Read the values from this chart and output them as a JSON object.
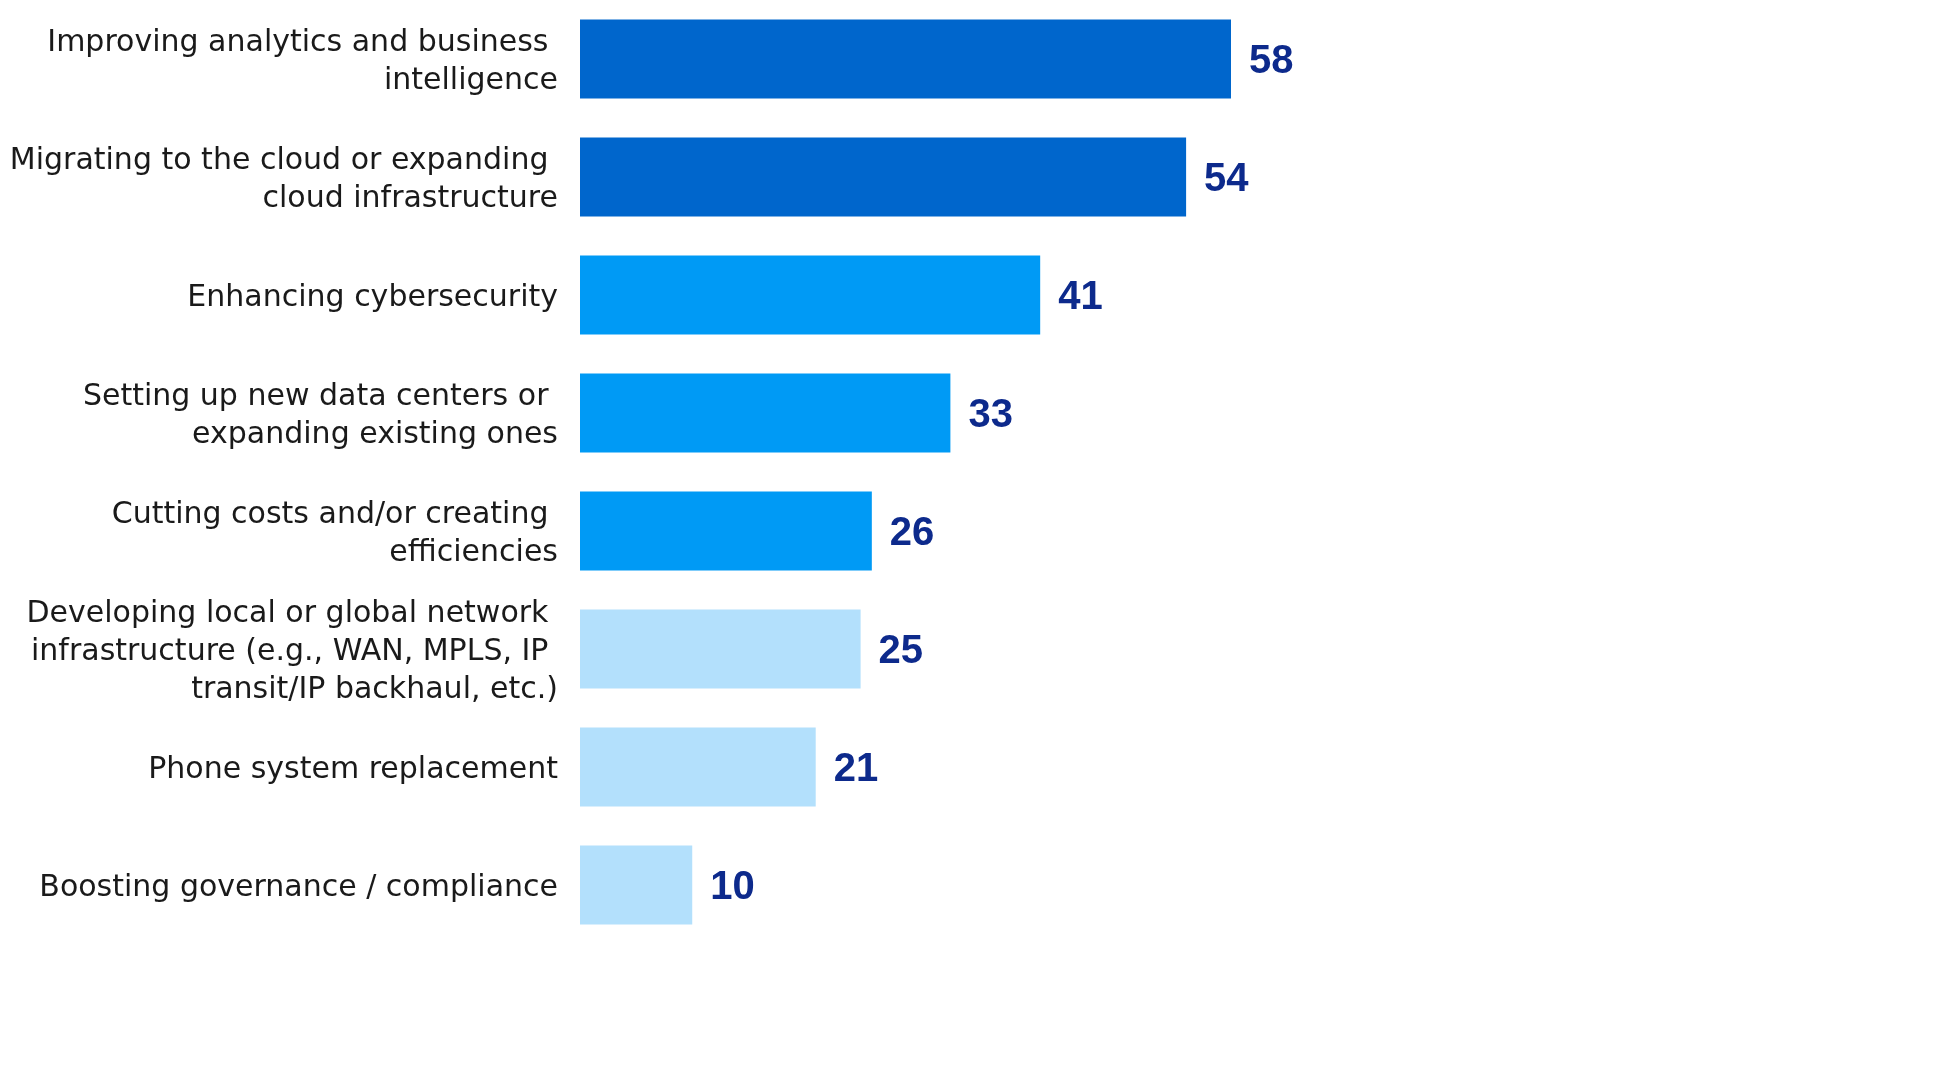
{
  "chart_data": {
    "type": "bar",
    "orientation": "horizontal",
    "categories": [
      "Improving analytics and business intelligence",
      "Migrating to the cloud or expanding cloud infrastructure",
      "Enhancing cybersecurity",
      "Setting up new data centers or expanding existing ones",
      "Cutting costs and/or creating efficiencies",
      "Developing local or global network infrastructure (e.g., WAN, MPLS, IP transit/IP backhaul, etc.)",
      "Phone system replacement",
      "Boosting governance / compliance"
    ],
    "values": [
      58,
      54,
      41,
      33,
      26,
      25,
      21,
      10
    ],
    "colors": [
      "#0066cc",
      "#0066cc",
      "#009af5",
      "#009af5",
      "#009af5",
      "#b3e0fc",
      "#b3e0fc",
      "#b3e0fc"
    ],
    "data_labels": true
  }
}
